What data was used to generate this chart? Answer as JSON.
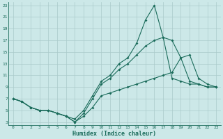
{
  "xlabel": "Humidex (Indice chaleur)",
  "bg_color": "#cce8e8",
  "grid_color": "#aacaca",
  "line_color": "#1a6b5a",
  "xlim": [
    -0.5,
    23.5
  ],
  "ylim": [
    2.5,
    23.5
  ],
  "yticks": [
    3,
    5,
    7,
    9,
    11,
    13,
    15,
    17,
    19,
    21,
    23
  ],
  "xticks": [
    0,
    1,
    2,
    3,
    4,
    5,
    6,
    7,
    8,
    9,
    10,
    11,
    12,
    13,
    14,
    15,
    16,
    17,
    18,
    19,
    20,
    21,
    22,
    23
  ],
  "s1_x": [
    0,
    1,
    2,
    3,
    4,
    5,
    6,
    7,
    8,
    9,
    10,
    11,
    12,
    13,
    14,
    15,
    16,
    17,
    18,
    19,
    20,
    21,
    22,
    23
  ],
  "s1_y": [
    7.0,
    6.5,
    5.5,
    5.0,
    5.0,
    4.5,
    4.0,
    3.5,
    5.0,
    7.5,
    10.0,
    11.0,
    13.0,
    14.0,
    16.5,
    20.5,
    23.0,
    17.5,
    10.5,
    10.0,
    9.5,
    9.5,
    9.0,
    9.0
  ],
  "s2_x": [
    0,
    1,
    2,
    3,
    4,
    5,
    6,
    7,
    8,
    9,
    10,
    11,
    12,
    13,
    14,
    15,
    16,
    17,
    18,
    19,
    20,
    21,
    22,
    23
  ],
  "s2_y": [
    7.0,
    6.5,
    5.5,
    5.0,
    5.0,
    4.5,
    4.0,
    3.0,
    4.5,
    7.0,
    9.5,
    10.5,
    12.0,
    13.0,
    14.5,
    16.0,
    17.0,
    17.5,
    17.0,
    14.0,
    10.0,
    9.5,
    9.0,
    9.0
  ],
  "s3_x": [
    0,
    1,
    2,
    3,
    4,
    5,
    6,
    7,
    8,
    9,
    10,
    11,
    12,
    13,
    14,
    15,
    16,
    17,
    18,
    19,
    20,
    21,
    22,
    23
  ],
  "s3_y": [
    7.0,
    6.5,
    5.5,
    5.0,
    5.0,
    4.5,
    4.0,
    3.0,
    4.0,
    5.5,
    7.5,
    8.0,
    8.5,
    9.0,
    9.5,
    10.0,
    10.5,
    11.0,
    11.5,
    14.0,
    14.5,
    10.5,
    9.5,
    9.0
  ]
}
